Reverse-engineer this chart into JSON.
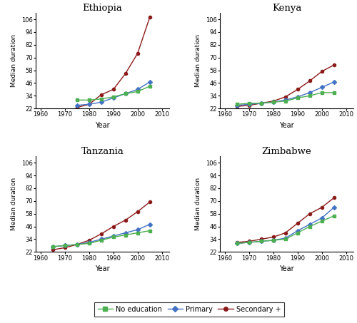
{
  "countries": [
    "Ethiopia",
    "Kenya",
    "Tanzania",
    "Zimbabwe"
  ],
  "years": {
    "Ethiopia": [
      1975,
      1980,
      1985,
      1990,
      1995,
      2000,
      2005
    ],
    "Kenya": [
      1965,
      1970,
      1975,
      1980,
      1985,
      1990,
      1995,
      2000,
      2005
    ],
    "Tanzania": [
      1965,
      1970,
      1975,
      1980,
      1985,
      1990,
      1995,
      2000,
      2005
    ],
    "Zimbabwe": [
      1965,
      1970,
      1975,
      1980,
      1985,
      1990,
      1995,
      2000,
      2005
    ]
  },
  "no_education": {
    "Ethiopia": [
      30,
      30,
      31,
      33,
      36,
      38,
      43
    ],
    "Kenya": [
      26,
      27,
      27,
      28,
      29,
      32,
      34,
      37,
      37
    ],
    "Tanzania": [
      27,
      28,
      29,
      30,
      33,
      36,
      38,
      40,
      42
    ],
    "Zimbabwe": [
      30,
      31,
      32,
      33,
      34,
      40,
      46,
      51,
      56
    ]
  },
  "primary": {
    "Ethiopia": [
      25,
      26,
      28,
      32,
      36,
      40,
      47
    ],
    "Kenya": [
      25,
      26,
      27,
      28,
      30,
      33,
      37,
      42,
      47
    ],
    "Tanzania": [
      27,
      28,
      29,
      31,
      34,
      37,
      40,
      43,
      48
    ],
    "Zimbabwe": [
      30,
      31,
      32,
      33,
      35,
      42,
      48,
      54,
      64
    ]
  },
  "secondary": {
    "Ethiopia": [
      23,
      26,
      35,
      40,
      55,
      74,
      108
    ],
    "Kenya": [
      24,
      25,
      27,
      29,
      33,
      40,
      48,
      57,
      63
    ],
    "Tanzania": [
      24,
      26,
      29,
      33,
      39,
      46,
      52,
      60,
      69
    ],
    "Zimbabwe": [
      31,
      32,
      34,
      36,
      40,
      49,
      58,
      64,
      73
    ]
  },
  "color_no_education": "#4CAF50",
  "color_primary": "#4472C4",
  "color_secondary": "#8B1A1A",
  "xlim": [
    1958,
    2013
  ],
  "ylim": [
    22,
    112
  ],
  "yticks": [
    22,
    34,
    46,
    58,
    70,
    82,
    94,
    106
  ],
  "xticks": [
    1960,
    1970,
    1980,
    1990,
    2000,
    2010
  ]
}
